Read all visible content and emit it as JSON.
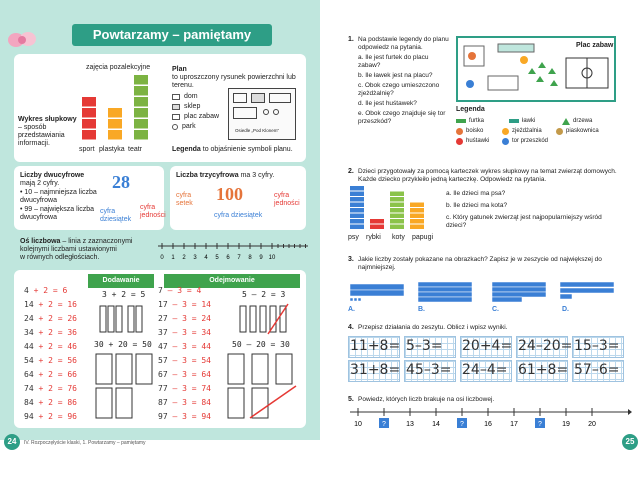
{
  "left": {
    "header": "Powtarzamy – pamiętamy",
    "bar_chart": {
      "title": "zajęcia pozalekcyjne",
      "label": "Wykres słupkowy",
      "desc": "– sposób przedstawiania informacji.",
      "categories": [
        "sport",
        "plastyka",
        "teatr"
      ],
      "values": [
        4,
        3,
        6
      ],
      "colors": [
        "#e53935",
        "#f9a825",
        "#7cb342"
      ]
    },
    "plan": {
      "title": "Plan",
      "desc": "to uproszczony rysunek powierzchni lub terenu.",
      "legend_items": [
        "dom",
        "sklep",
        "plac zabaw",
        "park"
      ],
      "legend_word": "Legenda",
      "legend_desc": "to objaśnienie symboli planu.",
      "map_label": "Osiedle „Pod Klonem”"
    },
    "two_digit": {
      "title": "Liczby dwucyfrowe",
      "desc": "mają 2 cyfry.",
      "b1": "• 10 – najmniejsza liczba dwucyfrowa",
      "b2": "• 99 – największa liczba dwucyfrowa",
      "number": "28",
      "tens": "cyfra dziesiątek",
      "units": "cyfra jedności"
    },
    "three_digit": {
      "title": "Liczba trzycyfrowa",
      "desc": "ma 3 cyfry.",
      "number": "100",
      "hundreds": "cyfra setek",
      "tens": "cyfra dziesiątek",
      "units": "cyfra jedności"
    },
    "number_line": {
      "title": "Oś liczbowa",
      "desc1": "– linia z zaznaczonymi",
      "desc2": "kolejnymi liczbami ustawionymi",
      "desc3": "w równych odległościach.",
      "ticks": [
        "0",
        "1",
        "2",
        "3",
        "4",
        "5",
        "6",
        "7",
        "8",
        "9",
        "10"
      ]
    },
    "addition": {
      "title": "Dodawanie",
      "rows": [
        "4 + 2 = 6",
        "14 + 2 = 16",
        "24 + 2 = 26",
        "34 + 2 = 36",
        "44 + 2 = 46",
        "54 + 2 = 56",
        "64 + 2 = 66",
        "74 + 2 = 76",
        "84 + 2 = 86",
        "94 + 2 = 96"
      ],
      "ex1": "3 + 2 = 5",
      "ex2": "30 + 20 = 50"
    },
    "subtraction": {
      "title": "Odejmowanie",
      "rows": [
        "7 – 3 = 4",
        "17 – 3 = 14",
        "27 – 3 = 24",
        "37 – 3 = 34",
        "47 – 3 = 44",
        "57 – 3 = 54",
        "67 – 3 = 64",
        "77 – 3 = 74",
        "87 – 3 = 84",
        "97 – 3 = 94"
      ],
      "ex1": "5 – 2 = 3",
      "ex2": "50 – 20 = 30"
    },
    "page_number": "24",
    "footer": "IV. Rozpoczęłyście klaski, 1. Powtarzamy – pamiętamy"
  },
  "right": {
    "q1": {
      "num": "1.",
      "text": "Na podstawie legendy do planu odpowiedz na pytania.",
      "a": "a. Ile jest furtek do placu zabaw?",
      "b": "b. Ile ławek jest na placu?",
      "c": "c. Obok czego umieszczono zjeżdżalnię?",
      "d": "d. Ile jest huśtawek?",
      "e": "e. Obok czego znajduje się tor przeszkód?",
      "map_title": "Plac zabaw",
      "legend_title": "Legenda",
      "legend": [
        "furtka",
        "ławki",
        "drzewa",
        "boisko",
        "zjeżdżalnia",
        "piaskownica",
        "huśtawki",
        "tor przeszkód"
      ]
    },
    "q2": {
      "num": "2.",
      "text": "Dzieci przygotowały za pomocą karteczek wykres słupkowy na temat zwierząt domowych. Każde dziecko przykleiło jedną karteczkę. Odpowiedz na pytania.",
      "a": "a. Ile dzieci ma psa?",
      "b": "b. Ile dzieci ma kota?",
      "c": "c. Który gatunek zwierząt jest najpopularniejszy wśród dzieci?",
      "categories": [
        "psy",
        "rybki",
        "koty",
        "papugi"
      ],
      "values": [
        8,
        2,
        7,
        5
      ],
      "colors": [
        "#3a7fd5",
        "#e53935",
        "#8bc34a",
        "#f9a825"
      ]
    },
    "q3": {
      "num": "3.",
      "text": "Jakie liczby zostały pokazane na obrazkach? Zapisz je w zeszycie od największej do najmniejszej.",
      "labels": [
        "A.",
        "B.",
        "C.",
        "D."
      ]
    },
    "q4": {
      "num": "4.",
      "text": "Przepisz działania do zeszytu. Oblicz i wpisz wyniki.",
      "row1": [
        "11+8=",
        "5–3=",
        "20+4=",
        "24–20=",
        "15–3="
      ],
      "row2": [
        "31+8=",
        "45–3=",
        "24–4=",
        "61+8=",
        "57–6="
      ]
    },
    "q5": {
      "num": "5.",
      "text": "Powiedz, których liczb brakuje na osi liczbowej.",
      "ticks": [
        "10",
        "?",
        "13",
        "14",
        "?",
        "16",
        "17",
        "?",
        "19",
        "20"
      ]
    },
    "page_number": "25"
  }
}
